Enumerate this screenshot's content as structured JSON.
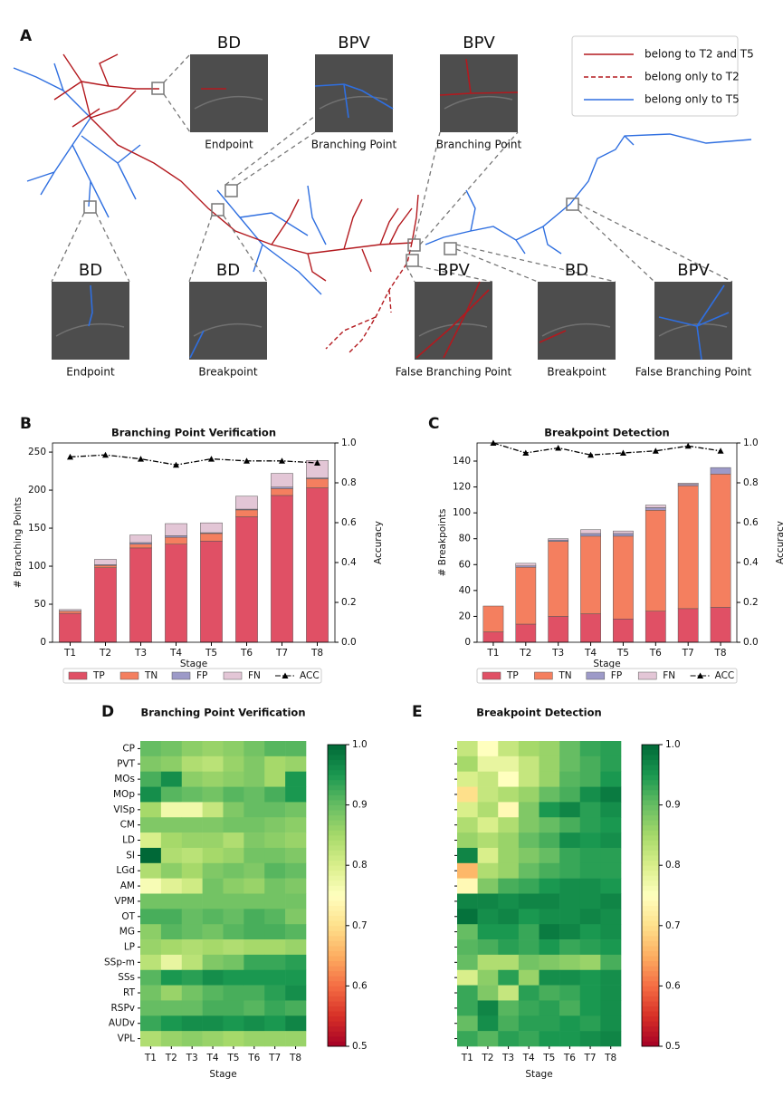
{
  "figure_a": {
    "label": "A",
    "legend": [
      "belong to T2 and T5",
      "belong only to T2",
      "belong only to T5"
    ],
    "insets": [
      {
        "title": "BD",
        "caption": "Endpoint"
      },
      {
        "title": "BPV",
        "caption": "Branching Point"
      },
      {
        "title": "BPV",
        "caption": "Branching Point"
      },
      {
        "title": "BD",
        "caption": "Endpoint"
      },
      {
        "title": "BD",
        "caption": "Breakpoint"
      },
      {
        "title": "BPV",
        "caption": "False Branching Point"
      },
      {
        "title": "BD",
        "caption": "Breakpoint"
      },
      {
        "title": "BPV",
        "caption": "False Branching Point"
      }
    ]
  },
  "chart_data": [
    {
      "type": "bar",
      "panel_label": "B",
      "title": "Branching Point Verification",
      "x_label": "Stage",
      "y_label": "# Branching Points",
      "y2_label": "Accuracy",
      "categories": [
        "T1",
        "T2",
        "T3",
        "T4",
        "T5",
        "T6",
        "T7",
        "T8"
      ],
      "stacked": true,
      "series": [
        {
          "name": "TP",
          "color": "#e05065",
          "values": [
            38,
            98,
            124,
            129,
            133,
            165,
            193,
            203
          ]
        },
        {
          "name": "TN",
          "color": "#f47f5f",
          "values": [
            3,
            3,
            5,
            9,
            10,
            9,
            9,
            12
          ]
        },
        {
          "name": "FP",
          "color": "#9d9ac8",
          "values": [
            0,
            1,
            2,
            2,
            1,
            1,
            2,
            1
          ]
        },
        {
          "name": "FN",
          "color": "#e3c6d6",
          "values": [
            2,
            7,
            10,
            16,
            13,
            17,
            18,
            23
          ]
        },
        {
          "name": "ACC",
          "type": "line",
          "axis": "y2",
          "color": "#000000",
          "values": [
            0.93,
            0.94,
            0.92,
            0.89,
            0.92,
            0.91,
            0.91,
            0.9
          ]
        }
      ],
      "ylim": [
        0,
        262
      ],
      "yticks": [
        0,
        50,
        100,
        150,
        200,
        250
      ],
      "y2lim": [
        0,
        1
      ],
      "y2ticks": [
        {
          "value": 0,
          "label": "0.0"
        },
        0.2,
        0.4,
        0.6,
        0.8,
        {
          "value": 1,
          "label": "1.0"
        }
      ]
    },
    {
      "type": "bar",
      "panel_label": "C",
      "title": "Breakpoint Detection",
      "x_label": "Stage",
      "y_label": "# Breakpoints",
      "y2_label": "Accuracy",
      "categories": [
        "T1",
        "T2",
        "T3",
        "T4",
        "T5",
        "T6",
        "T7",
        "T8"
      ],
      "stacked": true,
      "series": [
        {
          "name": "TP",
          "color": "#e05065",
          "values": [
            8,
            14,
            20,
            22,
            18,
            24,
            26,
            27
          ]
        },
        {
          "name": "TN",
          "color": "#f47f5f",
          "values": [
            20,
            44,
            58,
            60,
            64,
            78,
            95,
            103
          ]
        },
        {
          "name": "FP",
          "color": "#9d9ac8",
          "values": [
            0,
            1,
            1,
            2,
            2,
            2,
            1,
            5
          ]
        },
        {
          "name": "FN",
          "color": "#e3c6d6",
          "values": [
            0,
            2,
            1,
            3,
            2,
            2,
            1,
            0
          ]
        },
        {
          "name": "ACC",
          "type": "line",
          "axis": "y2",
          "color": "#000000",
          "values": [
            1.0,
            0.95,
            0.975,
            0.94,
            0.95,
            0.96,
            0.985,
            0.96
          ]
        }
      ],
      "ylim": [
        0,
        154
      ],
      "yticks": [
        0,
        20,
        40,
        60,
        80,
        100,
        120,
        140
      ],
      "y2lim": [
        0,
        1
      ],
      "y2ticks": [
        {
          "value": 0,
          "label": "0.0"
        },
        0.2,
        0.4,
        0.6,
        0.8,
        {
          "value": 1,
          "label": "1.0"
        }
      ]
    },
    {
      "type": "heatmap",
      "panel_label": "D",
      "title": "Branching Point Verification",
      "x_label": "Stage",
      "categories": [
        "T1",
        "T2",
        "T3",
        "T4",
        "T5",
        "T6",
        "T7",
        "T8"
      ],
      "rows": [
        "CP",
        "PVT",
        "MOs",
        "MOp",
        "VISp",
        "CM",
        "LD",
        "SI",
        "LGd",
        "AM",
        "VPM",
        "OT",
        "MG",
        "LP",
        "SSp-m",
        "SSs",
        "RT",
        "RSPv",
        "AUDv",
        "VPL"
      ],
      "values": [
        [
          0.9,
          0.89,
          0.87,
          0.86,
          0.87,
          0.89,
          0.91,
          0.91
        ],
        [
          0.88,
          0.87,
          0.84,
          0.83,
          0.86,
          0.88,
          0.85,
          0.86
        ],
        [
          0.92,
          0.96,
          0.87,
          0.86,
          0.87,
          0.88,
          0.85,
          0.95
        ],
        [
          0.96,
          0.91,
          0.9,
          0.89,
          0.91,
          0.9,
          0.92,
          0.95
        ],
        [
          0.85,
          0.77,
          0.77,
          0.82,
          0.88,
          0.9,
          0.9,
          0.89
        ],
        [
          0.88,
          0.88,
          0.88,
          0.88,
          0.89,
          0.89,
          0.88,
          0.87
        ],
        [
          0.8,
          0.85,
          0.86,
          0.86,
          0.84,
          0.88,
          0.87,
          0.86
        ],
        [
          1.0,
          0.84,
          0.83,
          0.85,
          0.86,
          0.89,
          0.89,
          0.88
        ],
        [
          0.84,
          0.87,
          0.85,
          0.88,
          0.89,
          0.88,
          0.91,
          0.9
        ],
        [
          0.76,
          0.79,
          0.81,
          0.89,
          0.87,
          0.86,
          0.89,
          0.88
        ],
        [
          0.89,
          0.89,
          0.89,
          0.89,
          0.89,
          0.89,
          0.89,
          0.89
        ],
        [
          0.92,
          0.92,
          0.9,
          0.91,
          0.9,
          0.92,
          0.91,
          0.88
        ],
        [
          0.87,
          0.91,
          0.9,
          0.89,
          0.91,
          0.92,
          0.92,
          0.91
        ],
        [
          0.86,
          0.85,
          0.84,
          0.85,
          0.84,
          0.85,
          0.85,
          0.86
        ],
        [
          0.83,
          0.78,
          0.83,
          0.88,
          0.89,
          0.93,
          0.93,
          0.94
        ],
        [
          0.91,
          0.95,
          0.94,
          0.96,
          0.95,
          0.95,
          0.95,
          0.95
        ],
        [
          0.89,
          0.86,
          0.89,
          0.91,
          0.92,
          0.92,
          0.94,
          0.96
        ],
        [
          0.9,
          0.9,
          0.9,
          0.92,
          0.92,
          0.91,
          0.93,
          0.92
        ],
        [
          0.93,
          0.95,
          0.96,
          0.96,
          0.95,
          0.96,
          0.95,
          0.97
        ],
        [
          0.84,
          0.86,
          0.87,
          0.86,
          0.85,
          0.86,
          0.86,
          0.86
        ]
      ],
      "colorbar_lim": [
        0.5,
        1
      ],
      "colorbar_ticks": [
        0.5,
        0.6,
        0.7,
        0.8,
        0.9,
        {
          "value": 1,
          "label": "1.0"
        }
      ],
      "colormap": [
        "#a50026",
        "#d73027",
        "#f46d43",
        "#fdae61",
        "#fee08b",
        "#ffffbf",
        "#d9ef8b",
        "#a6d96a",
        "#66bd63",
        "#1a9850",
        "#006837"
      ]
    },
    {
      "type": "heatmap",
      "panel_label": "E",
      "title": "Breakpoint Detection",
      "x_label": "Stage",
      "categories": [
        "T1",
        "T2",
        "T3",
        "T4",
        "T5",
        "T6",
        "T7",
        "T8"
      ],
      "rows": [
        null,
        null,
        null,
        null,
        null,
        null,
        null,
        null,
        null,
        null,
        null,
        null,
        null,
        null,
        null,
        null,
        null,
        null,
        null,
        null
      ],
      "values": [
        [
          0.82,
          0.75,
          0.82,
          0.85,
          0.86,
          0.9,
          0.93,
          0.94
        ],
        [
          0.85,
          0.78,
          0.78,
          0.82,
          0.86,
          0.9,
          0.92,
          0.94
        ],
        [
          0.8,
          0.82,
          0.75,
          0.82,
          0.86,
          0.91,
          0.92,
          0.95
        ],
        [
          0.7,
          0.82,
          0.84,
          0.86,
          0.9,
          0.92,
          0.96,
          0.98
        ],
        [
          0.8,
          0.84,
          0.74,
          0.88,
          0.95,
          0.97,
          0.94,
          0.96
        ],
        [
          0.84,
          0.8,
          0.84,
          0.88,
          0.9,
          0.92,
          0.94,
          0.95
        ],
        [
          0.86,
          0.84,
          0.86,
          0.9,
          0.92,
          0.96,
          0.95,
          0.96
        ],
        [
          0.97,
          0.8,
          0.86,
          0.88,
          0.9,
          0.93,
          0.94,
          0.94
        ],
        [
          0.66,
          0.84,
          0.86,
          0.9,
          0.92,
          0.93,
          0.94,
          0.94
        ],
        [
          0.74,
          0.88,
          0.92,
          0.93,
          0.95,
          0.96,
          0.96,
          0.95
        ],
        [
          0.97,
          0.97,
          0.96,
          0.97,
          0.97,
          0.96,
          0.96,
          0.97
        ],
        [
          0.99,
          0.96,
          0.97,
          0.95,
          0.96,
          0.96,
          0.97,
          0.96
        ],
        [
          0.9,
          0.95,
          0.95,
          0.93,
          0.98,
          0.97,
          0.95,
          0.96
        ],
        [
          0.91,
          0.92,
          0.94,
          0.93,
          0.95,
          0.93,
          0.94,
          0.95
        ],
        [
          0.9,
          0.84,
          0.84,
          0.89,
          0.88,
          0.87,
          0.86,
          0.92
        ],
        [
          0.8,
          0.87,
          0.94,
          0.86,
          0.96,
          0.96,
          0.95,
          0.96
        ],
        [
          0.93,
          0.88,
          0.82,
          0.94,
          0.92,
          0.93,
          0.95,
          0.96
        ],
        [
          0.93,
          0.97,
          0.91,
          0.93,
          0.94,
          0.92,
          0.95,
          0.96
        ],
        [
          0.9,
          0.96,
          0.92,
          0.94,
          0.94,
          0.95,
          0.94,
          0.96
        ],
        [
          0.93,
          0.91,
          0.94,
          0.93,
          0.95,
          0.95,
          0.96,
          0.97
        ]
      ],
      "colorbar_lim": [
        0.5,
        1
      ],
      "colorbar_ticks": [
        0.5,
        0.6,
        0.7,
        0.8,
        0.9,
        {
          "value": 1,
          "label": "1.0"
        }
      ],
      "colormap": [
        "#a50026",
        "#d73027",
        "#f46d43",
        "#fdae61",
        "#fee08b",
        "#ffffbf",
        "#d9ef8b",
        "#a6d96a",
        "#66bd63",
        "#1a9850",
        "#006837"
      ]
    }
  ]
}
